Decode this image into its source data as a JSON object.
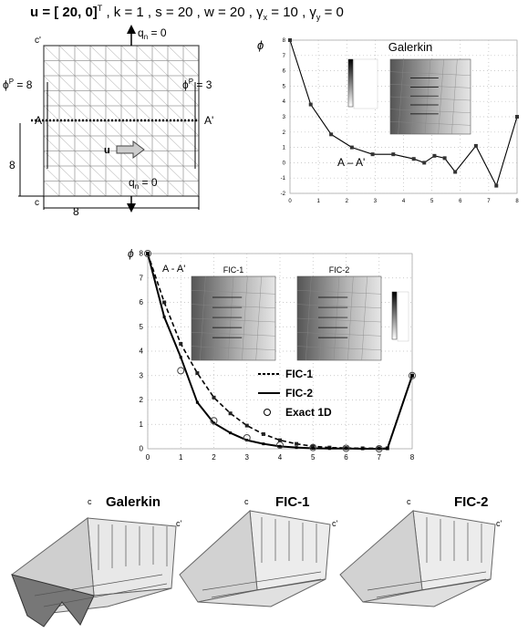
{
  "header": {
    "params": "u = [ 20, 0]",
    "sup_T": "T",
    "rest": " , k = 1 , s = 20 , w = 20 , γ",
    "gx_sub": "x",
    "gx_val": " = 10 , γ",
    "gy_sub": "y",
    "gy_val": " = 0"
  },
  "domain_figure": {
    "label_c_top": "c'",
    "label_c_bottom": "c",
    "qn_top": "q",
    "qn_top_sub": "n",
    "qn_top_val": " = 0",
    "qn_bottom": "q",
    "qn_bottom_sub": "n",
    "qn_bottom_val": " = 0",
    "phi_left": "ϕ",
    "phi_left_sup": "P",
    "phi_left_val": " = 8",
    "phi_right": "ϕ",
    "phi_right_sup": "P",
    "phi_right_val": " = 3",
    "label_A": "A",
    "label_Ap": "A'",
    "u_label": "u",
    "dim_left": "8",
    "dim_bottom": "8"
  },
  "chart_data": [
    {
      "type": "line",
      "title": "Galerkin",
      "ylabel": "ϕ",
      "annotation": "A – A'",
      "xlim": [
        0,
        8
      ],
      "ylim": [
        -2,
        8
      ],
      "x_ticks": [
        "0",
        "1",
        "2",
        "3",
        "4",
        "5",
        "6",
        "7",
        "8"
      ],
      "y_ticks": [
        "-2",
        "-1",
        "0",
        "1",
        "2",
        "3",
        "4",
        "5",
        "6",
        "7",
        "8"
      ],
      "grid": true,
      "series": [
        {
          "x": [
            0,
            0.73,
            1.45,
            2.18,
            2.91,
            3.64,
            4.36,
            4.73,
            5.09,
            5.45,
            5.82,
            6.55,
            7.27,
            8
          ],
          "y": [
            8,
            3.8,
            1.85,
            1.0,
            0.55,
            0.55,
            0.25,
            0.0,
            0.45,
            0.3,
            -0.6,
            1.1,
            -1.5,
            3.0
          ]
        }
      ]
    },
    {
      "type": "line",
      "annotation": "A - A'",
      "ylabel": "ϕ",
      "xlim": [
        0,
        8
      ],
      "ylim": [
        0,
        8
      ],
      "x_ticks": [
        "0",
        "1",
        "2",
        "3",
        "4",
        "5",
        "6",
        "7",
        "8"
      ],
      "y_ticks": [
        "0",
        "1",
        "2",
        "3",
        "4",
        "5",
        "6",
        "7",
        "8"
      ],
      "grid": true,
      "legend": "center-right",
      "inset_labels": [
        "FIC-1",
        "FIC-2"
      ],
      "series": [
        {
          "name": "FIC-1",
          "style": "dashed",
          "x": [
            0,
            0.5,
            1.0,
            1.5,
            2.0,
            2.5,
            3.0,
            3.5,
            4.0,
            4.5,
            5.0,
            5.5,
            6.0,
            6.5,
            7.0,
            7.25,
            8
          ],
          "y": [
            8,
            6.0,
            4.3,
            3.1,
            2.1,
            1.45,
            0.95,
            0.6,
            0.35,
            0.2,
            0.1,
            0.05,
            0.03,
            0.02,
            0.02,
            0.02,
            3.0
          ]
        },
        {
          "name": "FIC-2",
          "style": "solid",
          "x": [
            0,
            0.5,
            1.0,
            1.5,
            2.0,
            2.5,
            3.0,
            3.5,
            4.0,
            4.5,
            5.0,
            5.5,
            6.0,
            6.5,
            7.0,
            7.25,
            8
          ],
          "y": [
            8,
            5.4,
            3.75,
            1.9,
            1.05,
            0.65,
            0.35,
            0.2,
            0.1,
            0.05,
            0.02,
            0.01,
            0.01,
            0.0,
            0.0,
            0.0,
            3.0
          ]
        },
        {
          "name": "Exact 1D",
          "style": "markers",
          "x": [
            0,
            1,
            2,
            3,
            4,
            5,
            6,
            7,
            8
          ],
          "y": [
            8,
            3.2,
            1.15,
            0.45,
            0.15,
            0.05,
            0.02,
            0.0,
            3.0
          ]
        }
      ]
    }
  ],
  "surfaces": [
    {
      "title": "Galerkin",
      "c": "c",
      "cp": "c'"
    },
    {
      "title": "FIC-1",
      "c": "c",
      "cp": "c'"
    },
    {
      "title": "FIC-2",
      "c": "c",
      "cp": "c'"
    }
  ],
  "colors": {
    "grid": "#bbbbbb",
    "line": "#000000",
    "inset_dark": "#555555",
    "inset_light": "#e6e6e6"
  }
}
